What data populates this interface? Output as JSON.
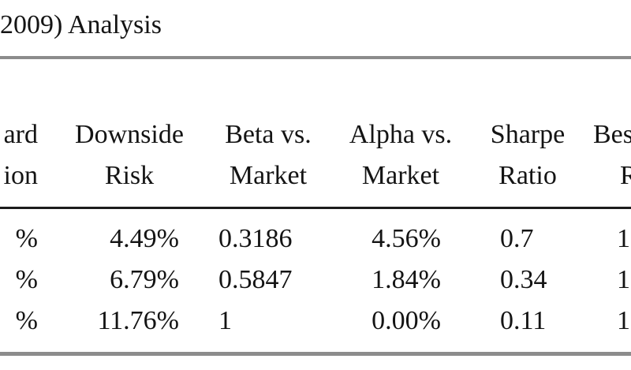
{
  "title": "2009) Analysis",
  "columns": {
    "std": {
      "line1": "ard",
      "line2": "ion"
    },
    "downside": {
      "line1": "Downside",
      "line2": "Risk"
    },
    "beta": {
      "line1": "Beta vs.",
      "line2": "Market"
    },
    "alpha": {
      "line1": "Alpha vs.",
      "line2": "Market"
    },
    "sharpe": {
      "line1": "Sharpe",
      "line2": "Ratio"
    },
    "best": {
      "line1": "Bes",
      "line2": "R"
    }
  },
  "rows": [
    {
      "std": "%",
      "downside": "4.49%",
      "beta": "0.3186",
      "alpha": "4.56%",
      "sharpe": "0.7",
      "best": "1"
    },
    {
      "std": "%",
      "downside": "6.79%",
      "beta": "0.5847",
      "alpha": "1.84%",
      "sharpe": "0.34",
      "best": "1"
    },
    {
      "std": "%",
      "downside": "11.76%",
      "beta": "1",
      "alpha": "0.00%",
      "sharpe": "0.11",
      "best": "1"
    }
  ]
}
